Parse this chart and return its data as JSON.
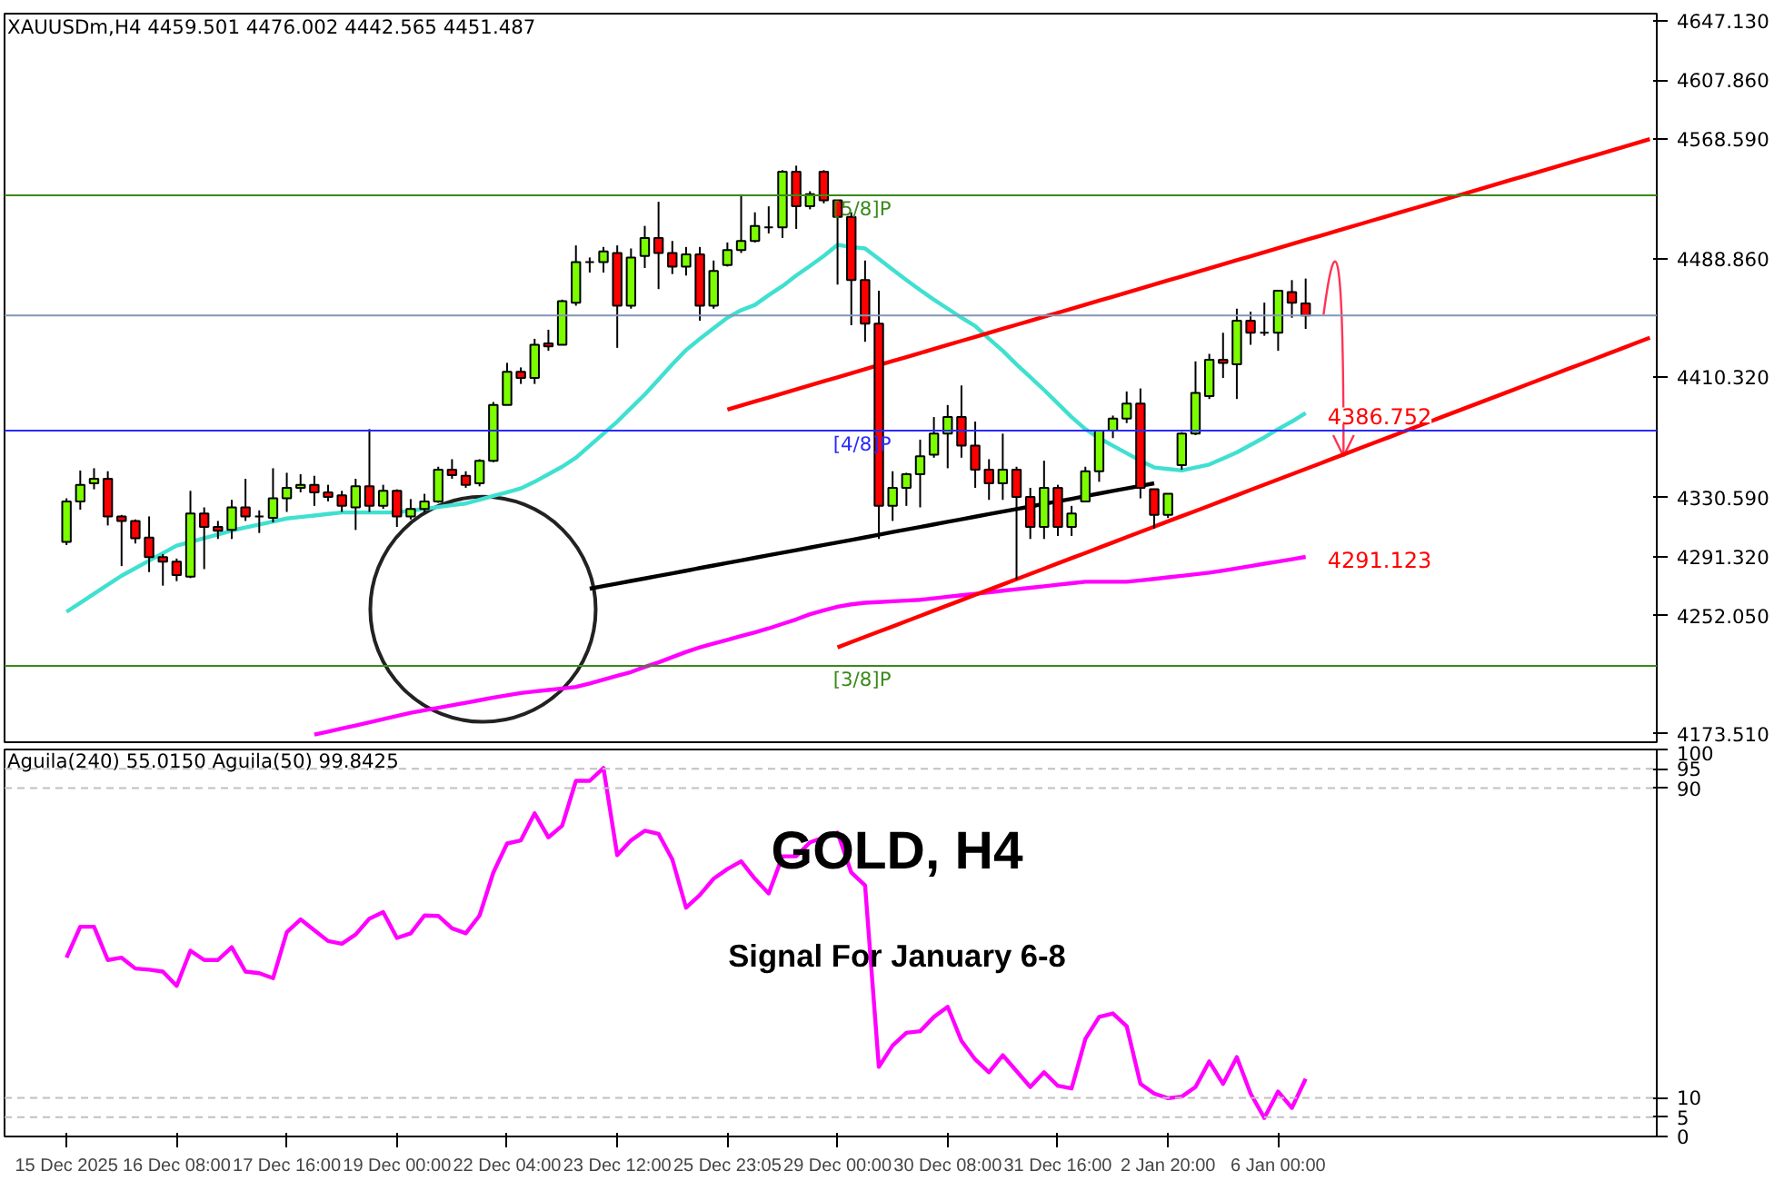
{
  "chart_data": [
    {
      "type": "candlestick",
      "title": "XAUUSDm,H4  4459.501 4476.002 4442.565 4451.487",
      "categories": [
        null,
        null,
        null,
        null,
        null,
        null,
        null,
        null,
        null,
        null,
        null,
        null,
        null,
        null,
        null,
        null,
        null,
        null,
        null,
        null,
        null,
        null,
        null,
        null,
        null,
        null,
        null,
        null,
        null,
        null,
        null,
        null,
        null,
        null,
        null,
        null,
        null,
        null,
        null,
        null,
        null,
        null,
        null,
        null,
        null,
        null,
        null,
        null,
        null,
        null,
        null,
        null,
        null,
        null,
        null,
        null,
        null,
        null,
        null,
        null,
        null,
        null,
        null,
        null,
        null,
        null,
        null,
        null,
        null,
        null,
        null,
        null,
        null,
        null,
        null,
        null,
        null,
        null,
        null,
        null,
        null,
        null,
        null,
        null,
        null,
        null,
        null,
        null,
        null,
        null,
        null,
        null,
        null,
        null,
        null,
        null,
        null,
        null,
        null,
        null,
        null,
        null,
        null,
        null,
        null,
        null,
        null,
        null,
        null,
        null,
        null,
        null,
        null,
        null,
        null,
        null
      ],
      "ohlc": [
        [
          4301,
          4330,
          4299,
          4328
        ],
        [
          4328,
          4348.5,
          4322.5,
          4339
        ],
        [
          4340,
          4350,
          4336,
          4343
        ],
        [
          4343,
          4348,
          4312,
          4318
        ],
        [
          4318,
          4319,
          4285,
          4315
        ],
        [
          4315,
          4316,
          4300,
          4303.5
        ],
        [
          4304,
          4318,
          4281,
          4291
        ],
        [
          4291,
          4293,
          4272,
          4288
        ],
        [
          4288,
          4290,
          4275,
          4279
        ],
        [
          4278,
          4335,
          4277,
          4320
        ],
        [
          4320,
          4324,
          4283,
          4311
        ],
        [
          4311,
          4315,
          4303,
          4308.5
        ],
        [
          4309,
          4329,
          4303,
          4324
        ],
        [
          4324,
          4343,
          4315,
          4318
        ],
        [
          4318,
          4322,
          4307,
          4318
        ],
        [
          4317,
          4350,
          4314,
          4330
        ],
        [
          4330,
          4347,
          4321,
          4337
        ],
        [
          4337,
          4346,
          4334,
          4339
        ],
        [
          4339,
          4345,
          4325,
          4334
        ],
        [
          4334,
          4339,
          4328,
          4331
        ],
        [
          4332,
          4335,
          4321,
          4325
        ],
        [
          4324,
          4343,
          4309,
          4338
        ],
        [
          4338,
          4376,
          4321,
          4325
        ],
        [
          4325,
          4339,
          4323,
          4335
        ],
        [
          4335,
          4336,
          4311,
          4318
        ],
        [
          4318,
          4329.5,
          4316,
          4323
        ],
        [
          4323,
          4333,
          4321,
          4328
        ],
        [
          4328,
          4351,
          4327,
          4349
        ],
        [
          4349,
          4356,
          4343,
          4345.5
        ],
        [
          4345,
          4348,
          4337,
          4339
        ],
        [
          4340,
          4356,
          4338,
          4355
        ],
        [
          4355,
          4394,
          4354,
          4392
        ],
        [
          4392,
          4420,
          4392,
          4414
        ],
        [
          4414,
          4417,
          4406,
          4410
        ],
        [
          4410,
          4436,
          4406,
          4432
        ],
        [
          4433,
          4442,
          4428,
          4431
        ],
        [
          4432,
          4462,
          4432,
          4461
        ],
        [
          4460,
          4498,
          4458,
          4487
        ],
        [
          4487,
          4490,
          4480,
          4487
        ],
        [
          4487,
          4497,
          4480,
          4494
        ],
        [
          4493,
          4498,
          4430,
          4458
        ],
        [
          4458,
          4496,
          4456,
          4490
        ],
        [
          4491,
          4511,
          4483,
          4503
        ],
        [
          4503,
          4527,
          4469,
          4493
        ],
        [
          4493,
          4501,
          4479,
          4484
        ],
        [
          4484,
          4497,
          4478,
          4492
        ],
        [
          4492,
          4497,
          4448,
          4458
        ],
        [
          4458,
          4488,
          4456,
          4481
        ],
        [
          4485,
          4500,
          4484,
          4495
        ],
        [
          4495,
          4532,
          4493,
          4501
        ],
        [
          4501,
          4520,
          4500,
          4511
        ],
        [
          4510,
          4524,
          4506,
          4510
        ],
        [
          4510,
          4548,
          4503,
          4547
        ],
        [
          4547,
          4551,
          4509,
          4524
        ],
        [
          4524,
          4534,
          4522,
          4532
        ],
        [
          4547,
          4548,
          4526,
          4528
        ],
        [
          4528,
          4528,
          4472,
          4517
        ],
        [
          4517,
          4520,
          4445,
          4475
        ],
        [
          4475,
          4488,
          4434,
          4446
        ],
        [
          4446,
          4468,
          4303,
          4325
        ],
        [
          4325,
          4348,
          4315,
          4337
        ],
        [
          4337,
          4347,
          4325,
          4346
        ],
        [
          4346,
          4369,
          4324,
          4358
        ],
        [
          4359,
          4384,
          4357,
          4373
        ],
        [
          4373,
          4392,
          4350,
          4384
        ],
        [
          4384,
          4405,
          4357,
          4365
        ],
        [
          4365,
          4381,
          4337,
          4349
        ],
        [
          4349,
          4356,
          4329,
          4340
        ],
        [
          4340,
          4373,
          4329,
          4349
        ],
        [
          4349,
          4351,
          4276,
          4331
        ],
        [
          4331,
          4337,
          4303,
          4311
        ],
        [
          4311,
          4355,
          4303,
          4337
        ],
        [
          4337,
          4339,
          4305,
          4311
        ],
        [
          4311,
          4325,
          4305,
          4320
        ],
        [
          4328,
          4351,
          4328,
          4348
        ],
        [
          4348,
          4375,
          4341,
          4375
        ],
        [
          4375,
          4385,
          4370,
          4383
        ],
        [
          4383,
          4401,
          4380,
          4393
        ],
        [
          4393,
          4403,
          4330,
          4337
        ],
        [
          4336,
          4336,
          4310,
          4319
        ],
        [
          4319,
          4333,
          4317,
          4333
        ],
        [
          4352,
          4374,
          4349,
          4373
        ],
        [
          4373,
          4421,
          4372,
          4400
        ],
        [
          4398,
          4426,
          4396,
          4422
        ],
        [
          4422,
          4440,
          4410,
          4420
        ],
        [
          4419,
          4456,
          4396,
          4448
        ],
        [
          4448,
          4454,
          4432,
          4440
        ],
        [
          4440,
          4460,
          4438,
          4440
        ],
        [
          4440,
          4468,
          4428,
          4468
        ],
        [
          4467,
          4475,
          4450,
          4460
        ],
        [
          4459.501,
          4476.002,
          4442.565,
          4451.487
        ],
        null,
        null,
        null,
        null,
        null,
        null,
        null,
        null,
        null,
        null,
        null,
        null,
        null,
        null,
        null,
        null,
        null,
        null,
        null,
        null,
        null,
        null,
        null,
        null,
        null
      ],
      "series": [
        {
          "type": "line",
          "color": "#40e0d0",
          "values": [
            4254.6,
            4260.6,
            4266.6,
            4272.6,
            4278.6,
            4283.6,
            4288.6,
            4293.6,
            4298.6,
            4301,
            4303.5,
            4306,
            4308.6,
            4310.6,
            4312.6,
            4314.6,
            4316.6,
            4317.6,
            4318.6,
            4319.6,
            4320.6,
            4320.6,
            4320.6,
            4320.6,
            4320.6,
            4321.8,
            4323,
            4324.2,
            4325.4,
            4326.6,
            4329,
            4331.6,
            4334,
            4336.6,
            4341,
            4346,
            4351,
            4357,
            4365,
            4373,
            4381,
            4390,
            4399,
            4409,
            4419,
            4428.5,
            4436,
            4443,
            4450,
            4455,
            4458.5,
            4465,
            4471,
            4478,
            4484.4,
            4491,
            4498.4,
            4497,
            4496,
            4489,
            4482,
            4475,
            4468.4,
            4462,
            4456,
            4450,
            4444.5,
            4436,
            4428,
            4419,
            4410.5,
            4402,
            4393,
            4384,
            4376,
            4370,
            4365,
            4360,
            4355,
            4350.5,
            4349.5,
            4348.5,
            4350.5,
            4352.5,
            4356.5,
            4360.5,
            4365.5,
            4370.5,
            4376,
            4381,
            4386.752,
            null,
            null,
            null,
            null,
            null,
            null,
            null,
            null,
            null,
            null,
            null,
            null,
            null,
            null,
            null,
            null,
            null,
            null,
            null,
            null,
            null,
            null,
            null,
            null,
            null
          ],
          "value_labels": [
            null,
            null,
            null,
            null,
            null,
            null,
            null,
            null,
            null,
            null,
            null,
            null,
            null,
            null,
            null,
            null,
            null,
            null,
            null,
            null,
            null,
            null,
            null,
            null,
            null,
            null,
            null,
            null,
            null,
            null,
            null,
            null,
            null,
            null,
            null,
            null,
            null,
            null,
            null,
            null,
            null,
            null,
            null,
            null,
            null,
            null,
            null,
            null,
            null,
            null,
            null,
            null,
            null,
            null,
            null,
            null,
            null,
            null,
            null,
            null,
            null,
            null,
            null,
            null,
            null,
            null,
            null,
            null,
            null,
            null,
            null,
            null,
            null,
            null,
            null,
            null,
            null,
            null,
            null,
            null,
            null,
            null,
            null,
            null,
            null,
            null,
            null,
            null,
            null,
            null,
            "4386.752",
            null,
            null,
            null,
            null,
            null,
            null,
            null,
            null,
            null,
            null,
            null,
            null,
            null,
            null,
            null,
            null,
            null,
            null,
            null,
            null,
            null,
            null,
            null,
            null,
            null
          ]
        },
        {
          "type": "line",
          "color": "#ff00ff",
          "values": [
            null,
            null,
            null,
            null,
            null,
            null,
            null,
            null,
            null,
            null,
            null,
            null,
            null,
            null,
            null,
            null,
            null,
            null,
            4173,
            4175,
            4177.1,
            4179.1,
            4181.2,
            4183.3,
            4185.4,
            4187.5,
            4189.2,
            4190.9,
            4192.5,
            4194.2,
            4195.9,
            4197.6,
            4199.2,
            4200.7,
            4201.7,
            4202.7,
            4203.7,
            4204.7,
            4207,
            4209.6,
            4212.1,
            4214.6,
            4218,
            4221,
            4224.5,
            4228,
            4231,
            4233.5,
            4236,
            4238.5,
            4241,
            4243.6,
            4246.6,
            4249.6,
            4253,
            4255.6,
            4258,
            4259.6,
            4260.6,
            4261.1,
            4261.6,
            4262.1,
            4262.6,
            4263.6,
            4264.6,
            4265.6,
            4266.6,
            4267.6,
            4268.6,
            4269.6,
            4270.6,
            4271.6,
            4272.6,
            4273.6,
            4274.6,
            4274.6,
            4274.6,
            4274.6,
            4275.5,
            4276.5,
            4277.5,
            4278.5,
            4279.6,
            4280.6,
            4282,
            4283.5,
            4285,
            4286.6,
            4288,
            4289.5,
            4291.123,
            null,
            null,
            null,
            null,
            null,
            null,
            null,
            null,
            null,
            null,
            null,
            null,
            null,
            null,
            null,
            null,
            null,
            null,
            null,
            null,
            null,
            null,
            null,
            null,
            null
          ],
          "value_labels": [
            null,
            null,
            null,
            null,
            null,
            null,
            null,
            null,
            null,
            null,
            null,
            null,
            null,
            null,
            null,
            null,
            null,
            null,
            null,
            null,
            null,
            null,
            null,
            null,
            null,
            null,
            null,
            null,
            null,
            null,
            null,
            null,
            null,
            null,
            null,
            null,
            null,
            null,
            null,
            null,
            null,
            null,
            null,
            null,
            null,
            null,
            null,
            null,
            null,
            null,
            null,
            null,
            null,
            null,
            null,
            null,
            null,
            null,
            null,
            null,
            null,
            null,
            null,
            null,
            null,
            null,
            null,
            null,
            null,
            null,
            null,
            null,
            null,
            null,
            null,
            null,
            null,
            null,
            null,
            null,
            null,
            null,
            null,
            null,
            null,
            null,
            null,
            null,
            null,
            null,
            "4291.123",
            null,
            null,
            null,
            null,
            null,
            null,
            null,
            null,
            null,
            null,
            null,
            null,
            null,
            null,
            null,
            null,
            null,
            null,
            null,
            null,
            null,
            null,
            null,
            null,
            null
          ]
        },
        {
          "type": "line",
          "color": "#ff0000",
          "values": [
            null,
            null,
            null,
            null,
            null,
            null,
            null,
            null,
            null,
            null,
            null,
            null,
            null,
            null,
            null,
            null,
            null,
            null,
            null,
            null,
            null,
            null,
            null,
            null,
            null,
            null,
            null,
            null,
            null,
            null,
            null,
            null,
            null,
            null,
            null,
            null,
            null,
            null,
            null,
            null,
            null,
            null,
            null,
            null,
            null,
            null,
            null,
            null,
            4389.0,
            4391.7,
            4394.4,
            4397.0,
            4399.7,
            4402.4,
            4405.1,
            4407.8,
            4410.4,
            4413.1,
            4415.8,
            4418.5,
            4421.2,
            4423.8,
            4426.5,
            4429.2,
            4431.9,
            4434.6,
            4437.2,
            4439.9,
            4442.6,
            4445.3,
            4448.0,
            4450.6,
            4453.3,
            4456.0,
            4458.7,
            4461.4,
            4464.0,
            4466.7,
            4469.4,
            4472.1,
            4474.8,
            4477.4,
            4480.1,
            4482.8,
            4485.5,
            4488.2,
            4490.8,
            4493.5,
            4496.2,
            4498.9,
            4501.6,
            4504.2,
            4506.9,
            4509.6,
            4512.3,
            4515.0,
            4517.6,
            4520.3,
            4523.0,
            4525.7,
            4528.4,
            4531.0,
            4533.7,
            4536.4,
            4539.1,
            4541.8,
            4544.4,
            4547.1,
            4549.8,
            4552.5,
            4555.2,
            4557.8,
            4560.5,
            4563.2,
            4565.9,
            4568.6
          ]
        },
        {
          "type": "line",
          "color": "#ff0000",
          "values": [
            null,
            null,
            null,
            null,
            null,
            null,
            null,
            null,
            null,
            null,
            null,
            null,
            null,
            null,
            null,
            null,
            null,
            null,
            null,
            null,
            null,
            null,
            null,
            null,
            null,
            null,
            null,
            null,
            null,
            null,
            null,
            null,
            null,
            null,
            null,
            null,
            null,
            null,
            null,
            null,
            null,
            null,
            null,
            null,
            null,
            null,
            null,
            null,
            null,
            null,
            null,
            null,
            null,
            null,
            null,
            null,
            4231.0,
            4234.5,
            4238.0,
            4241.5,
            4244.9,
            4248.4,
            4251.9,
            4255.4,
            4258.9,
            4262.4,
            4265.9,
            4269.3,
            4272.8,
            4276.3,
            4279.8,
            4283.3,
            4286.8,
            4290.3,
            4293.7,
            4297.2,
            4300.7,
            4304.2,
            4307.7,
            4311.2,
            4314.7,
            4318.2,
            4321.6,
            4325.1,
            4328.6,
            4332.1,
            4335.6,
            4339.1,
            4342.6,
            4346.0,
            4349.5,
            4353.0,
            4356.5,
            4360.0,
            4363.5,
            4367.0,
            4370.4,
            4373.9,
            4377.4,
            4380.9,
            4384.4,
            4387.9,
            4391.4,
            4394.8,
            4398.3,
            4401.8,
            4405.3,
            4408.8,
            4412.3,
            4415.8,
            4419.2,
            4422.7,
            4426.2,
            4429.7,
            4433.2,
            4436.7
          ]
        },
        {
          "type": "line",
          "color": "#000000",
          "values": [
            null,
            null,
            null,
            null,
            null,
            null,
            null,
            null,
            null,
            null,
            null,
            null,
            null,
            null,
            null,
            null,
            null,
            null,
            null,
            null,
            null,
            null,
            null,
            null,
            null,
            null,
            null,
            null,
            null,
            null,
            null,
            null,
            null,
            null,
            null,
            null,
            null,
            null,
            4270.0,
            4271.7,
            4273.4,
            4275.1,
            4276.8,
            4278.5,
            4280.2,
            4281.9,
            4283.7,
            4285.4,
            4287.1,
            4288.8,
            4290.5,
            4292.2,
            4293.9,
            4295.6,
            4297.3,
            4299.0,
            4300.7,
            4302.4,
            4304.1,
            4305.8,
            4307.6,
            4309.3,
            4311.0,
            4312.7,
            4314.4,
            4316.1,
            4317.8,
            4319.5,
            4321.2,
            4322.9,
            4324.6,
            4326.3,
            4328.0,
            4329.7,
            4331.5,
            4333.2,
            4334.9,
            4336.6,
            4338.3,
            4340.0,
            null,
            null,
            null,
            null,
            null,
            null,
            null,
            null,
            null,
            null,
            null,
            null,
            null,
            null,
            null,
            null,
            null,
            null,
            null,
            null,
            null,
            null,
            null,
            null,
            null,
            null,
            null,
            null,
            null,
            null,
            null,
            null,
            null,
            null,
            null,
            null
          ]
        }
      ],
      "ylim": [
        4168,
        4652
      ],
      "yticks": [
        {
          "value": 4647.13,
          "label": "4647.130"
        },
        {
          "value": 4607.86,
          "label": "4607.860"
        },
        {
          "value": 4568.59,
          "label": "4568.590"
        },
        {
          "value": 4488.86,
          "label": "4488.860"
        },
        {
          "value": 4410.32,
          "label": "4410.320"
        },
        {
          "value": 4330.59,
          "label": "4330.590"
        },
        {
          "value": 4291.32,
          "label": "4291.320"
        },
        {
          "value": 4252.05,
          "label": "4252.050"
        },
        {
          "value": 4173.51,
          "label": "4173.510"
        }
      ],
      "ref_lines": [
        {
          "axis": "y",
          "value": 4531.25,
          "label": "[5/8]P",
          "color": "#3a8a1a"
        },
        {
          "axis": "y",
          "value": 4451.487,
          "label": null,
          "color": "#8496b8"
        },
        {
          "axis": "y",
          "value": 4375.0,
          "label": "[4/8]P",
          "color": "#2a2aff"
        },
        {
          "axis": "y",
          "value": 4218.75,
          "label": "[3/8]P",
          "color": "#3a8a1a"
        }
      ],
      "tick_labels": "y"
    },
    {
      "type": "line",
      "title": "Aguila(240) 55.0150  Aguila(50) 99.8425",
      "categories": [
        "15 Dec 2025",
        null,
        null,
        null,
        null,
        null,
        null,
        null,
        "16 Dec 08:00",
        null,
        null,
        null,
        null,
        null,
        null,
        null,
        "17 Dec 16:00",
        null,
        null,
        null,
        null,
        null,
        null,
        null,
        "19 Dec 00:00",
        null,
        null,
        null,
        null,
        null,
        null,
        null,
        "22 Dec 04:00",
        null,
        null,
        null,
        null,
        null,
        null,
        null,
        "23 Dec 12:00",
        null,
        null,
        null,
        null,
        null,
        null,
        null,
        "25 Dec 23:05",
        null,
        null,
        null,
        null,
        null,
        null,
        null,
        "29 Dec 00:00",
        null,
        null,
        null,
        null,
        null,
        null,
        null,
        "30 Dec 08:00",
        null,
        null,
        null,
        null,
        null,
        null,
        null,
        "31 Dec 16:00",
        null,
        null,
        null,
        null,
        null,
        null,
        null,
        "2 Jan 20:00",
        null,
        null,
        null,
        null,
        null,
        null,
        null,
        "6 Jan 00:00",
        null,
        null,
        null,
        null,
        null,
        null,
        null,
        null,
        null,
        null,
        null,
        null,
        null,
        null,
        null,
        null,
        null,
        null,
        null,
        null,
        null,
        null,
        null,
        null,
        null,
        null,
        null
      ],
      "series": [
        {
          "color": "#ff00ff",
          "values": [
            46.2,
            54.2,
            54.2,
            45.6,
            46.2,
            43.4,
            43.1,
            42.6,
            38.9,
            48.0,
            45.6,
            45.6,
            48.9,
            42.6,
            42.2,
            40.9,
            52.8,
            56.1,
            53.3,
            50.5,
            49.8,
            52.2,
            56.3,
            58.0,
            51.3,
            52.5,
            57.1,
            57.0,
            53.8,
            52.5,
            57.1,
            68.2,
            75.7,
            76.5,
            83.5,
            77.3,
            80.3,
            91.9,
            91.9,
            95.2,
            72.7,
            76.5,
            79.0,
            78.2,
            71.6,
            59.1,
            62.4,
            66.6,
            69.1,
            71.1,
            66.6,
            62.8,
            72.4,
            72.4,
            76.0,
            77.3,
            78.5,
            68.2,
            64.9,
            18.0,
            23.5,
            26.8,
            27.2,
            30.9,
            33.5,
            24.7,
            19.9,
            16.6,
            21.0,
            16.9,
            12.8,
            16.6,
            13.1,
            12.4,
            25.2,
            30.9,
            31.8,
            28.5,
            13.6,
            11.1,
            9.9,
            10.3,
            12.8,
            19.4,
            13.6,
            20.5,
            11.1,
            4.8,
            11.6,
            7.4,
            14.9,
            null,
            null,
            null,
            null,
            null,
            null,
            null,
            null,
            null,
            null,
            null,
            null,
            null,
            null,
            null,
            null,
            null,
            null,
            null,
            null,
            null,
            null,
            null,
            null,
            null
          ]
        }
      ],
      "ylim": [
        0,
        100
      ],
      "yticks": [
        0,
        5,
        10,
        90,
        95,
        100
      ],
      "ref_lines": [
        {
          "axis": "y",
          "value": 95,
          "label": null,
          "color": "#c0c0c0",
          "line_style": "dashed"
        },
        {
          "axis": "y",
          "value": 90,
          "label": null,
          "color": "#c0c0c0",
          "line_style": "dashed"
        },
        {
          "axis": "y",
          "value": 10,
          "label": null,
          "color": "#c0c0c0",
          "line_style": "dashed"
        },
        {
          "axis": "y",
          "value": 5,
          "label": null,
          "color": "#c0c0c0",
          "line_style": "dashed"
        }
      ],
      "annotations": [
        "GOLD, H4",
        "Signal For January 6-8"
      ]
    }
  ]
}
